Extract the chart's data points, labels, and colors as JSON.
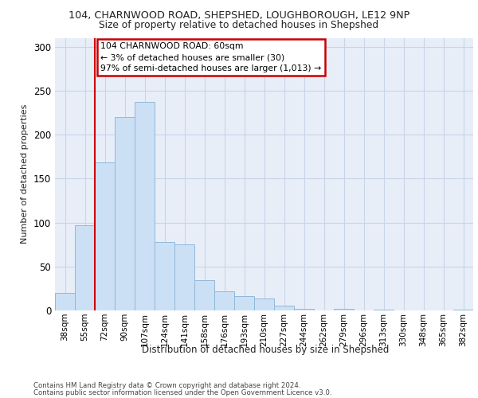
{
  "title_line1": "104, CHARNWOOD ROAD, SHEPSHED, LOUGHBOROUGH, LE12 9NP",
  "title_line2": "Size of property relative to detached houses in Shepshed",
  "xlabel": "Distribution of detached houses by size in Shepshed",
  "ylabel": "Number of detached properties",
  "categories": [
    "38sqm",
    "55sqm",
    "72sqm",
    "90sqm",
    "107sqm",
    "124sqm",
    "141sqm",
    "158sqm",
    "176sqm",
    "193sqm",
    "210sqm",
    "227sqm",
    "244sqm",
    "262sqm",
    "279sqm",
    "296sqm",
    "313sqm",
    "330sqm",
    "348sqm",
    "365sqm",
    "382sqm"
  ],
  "values": [
    20,
    97,
    168,
    220,
    237,
    78,
    75,
    34,
    22,
    16,
    14,
    5,
    2,
    0,
    2,
    0,
    1,
    0,
    0,
    0,
    1
  ],
  "bar_color": "#cce0f5",
  "bar_edge_color": "#90b8d8",
  "annotation_text": "104 CHARNWOOD ROAD: 60sqm\n← 3% of detached houses are smaller (30)\n97% of semi-detached houses are larger (1,013) →",
  "annotation_box_color": "#ffffff",
  "annotation_box_edge": "#cc0000",
  "red_line_color": "#cc0000",
  "grid_color": "#c8d4e8",
  "background_color": "#e8eef8",
  "footer_line1": "Contains HM Land Registry data © Crown copyright and database right 2024.",
  "footer_line2": "Contains public sector information licensed under the Open Government Licence v3.0.",
  "ylim": [
    0,
    310
  ],
  "yticks": [
    0,
    50,
    100,
    150,
    200,
    250,
    300
  ]
}
